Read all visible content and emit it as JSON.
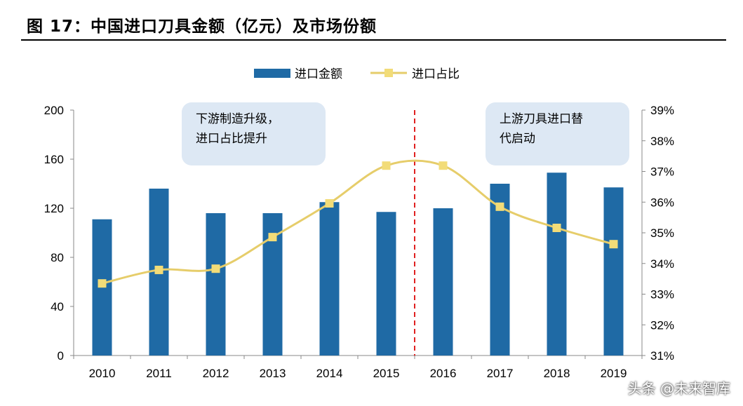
{
  "title": "图 17：中国进口刀具金额（亿元）及市场份额",
  "watermark": "头条 @未来智库",
  "chart_data": {
    "type": "bar+line",
    "categories": [
      "2010",
      "2011",
      "2012",
      "2013",
      "2014",
      "2015",
      "2016",
      "2017",
      "2018",
      "2019"
    ],
    "series": [
      {
        "name": "进口金额",
        "type": "bar",
        "axis": "left",
        "color": "#1f6aa5",
        "values": [
          111,
          136,
          116,
          116,
          125,
          117,
          120,
          140,
          149,
          137
        ]
      },
      {
        "name": "进口占比",
        "type": "line",
        "axis": "right",
        "color": "#e6cd6a",
        "values": [
          33.35,
          33.79,
          33.83,
          34.86,
          35.96,
          37.19,
          37.19,
          35.85,
          35.16,
          34.63
        ]
      }
    ],
    "left_axis": {
      "ylim": [
        0,
        200
      ],
      "ticks": [
        "0",
        "40",
        "80",
        "120",
        "160",
        "200"
      ]
    },
    "right_axis": {
      "ylim": [
        31,
        39
      ],
      "ticks": [
        "31%",
        "32%",
        "33%",
        "34%",
        "35%",
        "36%",
        "37%",
        "38%",
        "39%"
      ]
    },
    "legend": "top",
    "grid": false,
    "divider_between": [
      "2015",
      "2016"
    ],
    "annotations": [
      {
        "lines": [
          "下游制造升级，",
          "进口占比提升"
        ]
      },
      {
        "lines": [
          "上游刀具进口替",
          "代启动"
        ]
      }
    ]
  }
}
